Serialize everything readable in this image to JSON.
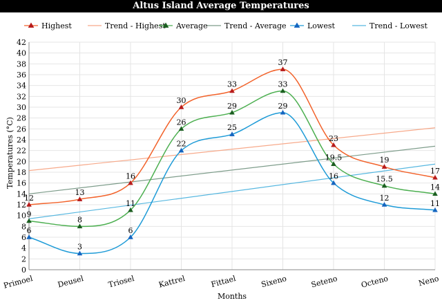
{
  "chart_data": {
    "type": "line",
    "title": "Altus Island Average Temperatures",
    "xlabel": "Months",
    "ylabel": "Temperatures (°C)",
    "ylim": [
      0,
      42
    ],
    "yticks": [
      0,
      2,
      4,
      6,
      8,
      10,
      12,
      14,
      16,
      18,
      20,
      22,
      24,
      26,
      28,
      30,
      32,
      34,
      36,
      38,
      40,
      42
    ],
    "grid": true,
    "legend_position": "top",
    "categories": [
      "Primoel",
      "Deusel",
      "Triosel",
      "Kattrel",
      "Fittael",
      "Sixeno",
      "Seteno",
      "Octeno",
      "Neno"
    ],
    "series": [
      {
        "name": "Highest",
        "values": [
          12,
          13,
          16,
          30,
          33,
          37,
          23,
          19,
          17
        ],
        "labels": [
          "12",
          "13",
          "16",
          "30",
          "33",
          "37",
          "23",
          "19",
          "17"
        ],
        "color": "#f2622a",
        "marker": "#b71c1c"
      },
      {
        "name": "Average",
        "values": [
          9,
          8,
          11,
          26,
          29,
          33,
          19.5,
          15.5,
          14
        ],
        "labels": [
          "9",
          "8",
          "11",
          "26",
          "29",
          "33",
          "19.5",
          "15.5",
          "14"
        ],
        "color": "#4caf50",
        "marker": "#1b5e20"
      },
      {
        "name": "Lowest",
        "values": [
          6,
          3,
          6,
          22,
          25,
          29,
          16,
          12,
          11
        ],
        "labels": [
          "6",
          "3",
          "6",
          "22",
          "25",
          "29",
          "16",
          "12",
          "11"
        ],
        "color": "#1e9bd7",
        "marker": "#1565c0"
      }
    ],
    "trends": [
      {
        "name": "Trend - Highest",
        "values": [
          18.3,
          26.2
        ],
        "color": "#f7a98a"
      },
      {
        "name": "Trend - Average",
        "values": [
          14,
          22.8
        ],
        "color": "#7d9c8a"
      },
      {
        "name": "Trend - Lowest",
        "values": [
          9.4,
          19.5
        ],
        "color": "#56b7e0"
      }
    ],
    "legend": [
      "Highest",
      "Trend - Highest",
      "Average",
      "Trend - Average",
      "Lowest",
      "Trend - Lowest"
    ]
  }
}
